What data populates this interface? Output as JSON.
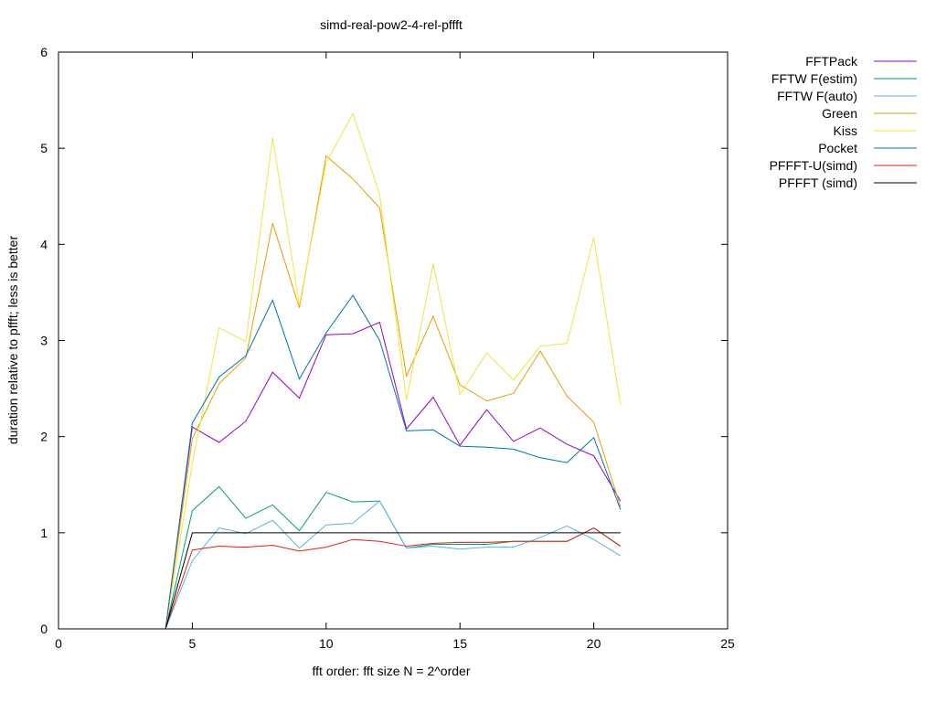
{
  "chart_data": {
    "type": "line",
    "title": "simd-real-pow2-4-rel-pffft",
    "xlabel": "fft order: fft size N = 2^order",
    "ylabel": "duration relative to pffft; less is better",
    "xlim": [
      0,
      25
    ],
    "ylim": [
      0,
      6
    ],
    "xticks": [
      "0",
      "5",
      "10",
      "15",
      "20",
      "25"
    ],
    "yticks": [
      "0",
      "1",
      "2",
      "3",
      "4",
      "5",
      "6"
    ],
    "grid": false,
    "legend_position": "outside-right",
    "x": [
      4,
      5,
      6,
      7,
      8,
      9,
      10,
      11,
      12,
      13,
      14,
      15,
      16,
      17,
      18,
      19,
      20,
      21
    ],
    "series": [
      {
        "name": "FFTPack",
        "color": "#9400d3",
        "values": [
          0,
          2.1,
          1.94,
          2.16,
          2.67,
          2.4,
          3.06,
          3.07,
          3.19,
          2.08,
          2.41,
          1.91,
          2.28,
          1.95,
          2.09,
          1.92,
          1.8,
          1.33
        ]
      },
      {
        "name": "FFTW F(estim)",
        "color": "#009e73",
        "values": [
          0,
          1.23,
          1.48,
          1.15,
          1.29,
          1.02,
          1.42,
          1.32,
          1.33,
          0.84,
          0.88,
          0.88,
          0.88,
          0.91,
          0.91,
          0.91,
          1.05,
          0.86
        ]
      },
      {
        "name": "FFTW F(auto)",
        "color": "#56b4e9",
        "values": [
          0,
          0.71,
          1.05,
          0.99,
          1.13,
          0.84,
          1.08,
          1.1,
          1.33,
          0.84,
          0.86,
          0.83,
          0.85,
          0.85,
          0.95,
          1.07,
          0.93,
          0.76
        ]
      },
      {
        "name": "Green",
        "color": "#e69f00",
        "values": [
          0,
          1.98,
          2.55,
          2.82,
          4.22,
          3.34,
          4.92,
          4.68,
          4.38,
          2.63,
          3.25,
          2.54,
          2.37,
          2.45,
          2.89,
          2.42,
          2.15,
          1.27
        ]
      },
      {
        "name": "Kiss",
        "color": "#f0e442",
        "values": [
          0,
          1.72,
          3.13,
          2.99,
          5.11,
          3.37,
          4.85,
          5.36,
          4.52,
          2.38,
          3.8,
          2.44,
          2.87,
          2.59,
          2.94,
          2.97,
          4.07,
          2.33
        ]
      },
      {
        "name": "Pocket",
        "color": "#0072b2",
        "values": [
          0,
          2.14,
          2.62,
          2.84,
          3.42,
          2.6,
          3.08,
          3.47,
          3.0,
          2.06,
          2.07,
          1.9,
          1.89,
          1.87,
          1.78,
          1.73,
          1.99,
          1.24
        ]
      },
      {
        "name": "PFFFT-U(simd)",
        "color": "#e51e10",
        "values": [
          0,
          0.82,
          0.86,
          0.85,
          0.87,
          0.81,
          0.85,
          0.93,
          0.91,
          0.86,
          0.89,
          0.9,
          0.9,
          0.91,
          0.91,
          0.91,
          1.05,
          0.86
        ]
      },
      {
        "name": "PFFFT (simd)",
        "color": "#000000",
        "values": [
          0,
          1.0,
          1.0,
          1.0,
          1.0,
          1.0,
          1.0,
          1.0,
          1.0,
          1.0,
          1.0,
          1.0,
          1.0,
          1.0,
          1.0,
          1.0,
          1.0,
          1.0
        ]
      }
    ]
  }
}
